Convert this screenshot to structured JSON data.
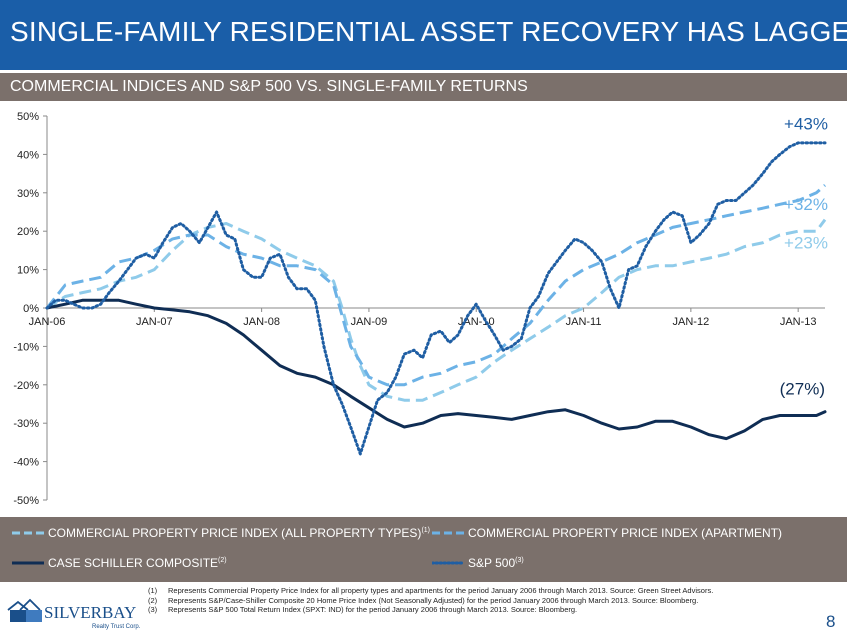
{
  "title": "SINGLE-FAMILY RESIDENTIAL ASSET RECOVERY HAS LAGGED",
  "subtitle": "COMMERCIAL INDICES AND S&P 500 VS. SINGLE-FAMILY RETURNS",
  "colors": {
    "title_bar": "#1a5ea8",
    "subtitle_bar": "#7b706b",
    "cppi_all": "#8fcbea",
    "cppi_apt": "#6cb2e6",
    "case_shiller": "#0f2d54",
    "sp500": "#1f5ea3"
  },
  "chart_data": {
    "type": "line",
    "y_tick_labels": [
      "50%",
      "40%",
      "30%",
      "20%",
      "10%",
      "0%",
      "-10%",
      "-20%",
      "-30%",
      "-40%",
      "-50%"
    ],
    "x_tick_labels": [
      "JAN-06",
      "JAN-07",
      "JAN-08",
      "JAN-09",
      "JAN-10",
      "JAN-11",
      "JAN-12",
      "JAN-13"
    ],
    "ylim": [
      -50,
      50
    ],
    "xlim": [
      2006.0,
      2013.25
    ],
    "grid": false,
    "legend_position": "bottom",
    "end_labels": [
      "+43%",
      "+32%",
      "+23%",
      "(27%)"
    ],
    "series": [
      {
        "name": "COMMERCIAL PROPERTY PRICE INDEX (ALL PROPERTY TYPES)",
        "footnote": "(1)",
        "style": "dashed",
        "color": "#8fcbea",
        "x": [
          2006.0,
          2006.17,
          2006.33,
          2006.5,
          2006.67,
          2006.83,
          2007.0,
          2007.17,
          2007.33,
          2007.5,
          2007.67,
          2007.83,
          2008.0,
          2008.17,
          2008.33,
          2008.5,
          2008.67,
          2008.75,
          2008.83,
          2008.92,
          2009.0,
          2009.17,
          2009.33,
          2009.5,
          2009.67,
          2009.83,
          2010.0,
          2010.17,
          2010.33,
          2010.5,
          2010.67,
          2010.83,
          2011.0,
          2011.17,
          2011.33,
          2011.5,
          2011.67,
          2011.83,
          2012.0,
          2012.17,
          2012.33,
          2012.5,
          2012.67,
          2012.83,
          2013.0,
          2013.17,
          2013.25
        ],
        "values": [
          0,
          3,
          4,
          5,
          7,
          8,
          10,
          15,
          19,
          21,
          22,
          20,
          18,
          15,
          13,
          11,
          7,
          0,
          -8,
          -15,
          -20,
          -23,
          -24,
          -24,
          -22,
          -20,
          -18,
          -14,
          -11,
          -8,
          -5,
          -2,
          0,
          4,
          8,
          10,
          11,
          11,
          12,
          13,
          14,
          16,
          17,
          19,
          20,
          20,
          23
        ]
      },
      {
        "name": "COMMERCIAL PROPERTY PRICE INDEX (APARTMENT)",
        "footnote": "",
        "style": "dashed",
        "color": "#6cb2e6",
        "x": [
          2006.0,
          2006.17,
          2006.33,
          2006.5,
          2006.67,
          2006.83,
          2007.0,
          2007.17,
          2007.33,
          2007.5,
          2007.67,
          2007.83,
          2008.0,
          2008.17,
          2008.33,
          2008.5,
          2008.67,
          2008.75,
          2008.83,
          2008.92,
          2009.0,
          2009.17,
          2009.33,
          2009.5,
          2009.67,
          2009.83,
          2010.0,
          2010.17,
          2010.33,
          2010.5,
          2010.67,
          2010.83,
          2011.0,
          2011.17,
          2011.33,
          2011.5,
          2011.67,
          2011.83,
          2012.0,
          2012.17,
          2012.33,
          2012.5,
          2012.67,
          2012.83,
          2013.0,
          2013.17,
          2013.25
        ],
        "values": [
          0,
          6,
          7,
          8,
          12,
          13,
          15,
          18,
          19,
          19,
          16,
          14,
          13,
          11,
          11,
          10,
          6,
          -2,
          -10,
          -14,
          -18,
          -20,
          -20,
          -18,
          -17,
          -15,
          -14,
          -12,
          -8,
          -4,
          2,
          7,
          10,
          12,
          14,
          17,
          19,
          21,
          22,
          23,
          24,
          25,
          26,
          27,
          28,
          30,
          32
        ]
      },
      {
        "name": "CASE SCHILLER COMPOSITE",
        "footnote": "(2)",
        "style": "solid",
        "color": "#0f2d54",
        "x": [
          2006.0,
          2006.17,
          2006.33,
          2006.5,
          2006.67,
          2006.83,
          2007.0,
          2007.17,
          2007.33,
          2007.5,
          2007.67,
          2007.83,
          2008.0,
          2008.17,
          2008.33,
          2008.5,
          2008.67,
          2008.83,
          2009.0,
          2009.17,
          2009.33,
          2009.5,
          2009.67,
          2009.83,
          2010.0,
          2010.17,
          2010.33,
          2010.5,
          2010.67,
          2010.83,
          2011.0,
          2011.17,
          2011.33,
          2011.5,
          2011.67,
          2011.83,
          2012.0,
          2012.17,
          2012.33,
          2012.5,
          2012.67,
          2012.83,
          2013.0,
          2013.17,
          2013.25
        ],
        "values": [
          0,
          1,
          2,
          2,
          2,
          1,
          0,
          -0.5,
          -1,
          -2,
          -4,
          -7,
          -11,
          -15,
          -17,
          -18,
          -20,
          -23,
          -26,
          -29,
          -31,
          -30,
          -28,
          -27.5,
          -28,
          -28.5,
          -29,
          -28,
          -27,
          -26.5,
          -28,
          -30,
          -31.5,
          -31,
          -29.5,
          -29.5,
          -31,
          -33,
          -34,
          -32,
          -29,
          -28,
          -28,
          -28,
          -27
        ]
      },
      {
        "name": "S&P 500",
        "footnote": "(3)",
        "style": "dotted",
        "color": "#1f5ea3",
        "x": [
          2006.0,
          2006.08,
          2006.17,
          2006.25,
          2006.33,
          2006.42,
          2006.5,
          2006.58,
          2006.67,
          2006.75,
          2006.83,
          2006.92,
          2007.0,
          2007.08,
          2007.17,
          2007.25,
          2007.33,
          2007.42,
          2007.5,
          2007.58,
          2007.67,
          2007.75,
          2007.83,
          2007.92,
          2008.0,
          2008.08,
          2008.17,
          2008.25,
          2008.33,
          2008.42,
          2008.5,
          2008.58,
          2008.67,
          2008.75,
          2008.83,
          2008.92,
          2009.0,
          2009.08,
          2009.17,
          2009.25,
          2009.33,
          2009.42,
          2009.5,
          2009.58,
          2009.67,
          2009.75,
          2009.83,
          2009.92,
          2010.0,
          2010.08,
          2010.17,
          2010.25,
          2010.33,
          2010.42,
          2010.5,
          2010.58,
          2010.67,
          2010.75,
          2010.83,
          2010.92,
          2011.0,
          2011.08,
          2011.17,
          2011.25,
          2011.33,
          2011.42,
          2011.5,
          2011.58,
          2011.67,
          2011.75,
          2011.83,
          2011.92,
          2012.0,
          2012.08,
          2012.17,
          2012.25,
          2012.33,
          2012.42,
          2012.5,
          2012.58,
          2012.67,
          2012.75,
          2012.83,
          2012.92,
          2013.0,
          2013.08,
          2013.17,
          2013.25
        ],
        "values": [
          0,
          2,
          2,
          1,
          0,
          0,
          1,
          4,
          7,
          10,
          13,
          14,
          13,
          17,
          21,
          22,
          20,
          17,
          21,
          25,
          19,
          18,
          10,
          8,
          8,
          13,
          14,
          8,
          5,
          5,
          2,
          -10,
          -20,
          -25,
          -31,
          -38,
          -31,
          -24,
          -22,
          -18,
          -12,
          -11,
          -13,
          -7,
          -6,
          -9,
          -7,
          -2,
          1,
          -3,
          -7,
          -11,
          -10,
          -8,
          0,
          3,
          9,
          12,
          15,
          18,
          17,
          15,
          12,
          5,
          0,
          10,
          11,
          16,
          20,
          23,
          25,
          24,
          17,
          19,
          22,
          27,
          28,
          28,
          30,
          32,
          35,
          38,
          40,
          42,
          43,
          43,
          43,
          43
        ]
      }
    ]
  },
  "legend": {
    "cppi_all_label": "COMMERCIAL PROPERTY PRICE INDEX (ALL PROPERTY TYPES)",
    "cppi_all_sup": "(1)",
    "cppi_apt_label": "COMMERCIAL PROPERTY PRICE INDEX (APARTMENT)",
    "case_label": "CASE SCHILLER COMPOSITE",
    "case_sup": "(2)",
    "sp_label": "S&P 500",
    "sp_sup": "(3)"
  },
  "footnotes": [
    {
      "num": "(1)",
      "text": "Represents Commercial Property Price Index for all property types and apartments for the period January 2006 through March 2013.  Source: Green Street Advisors."
    },
    {
      "num": "(2)",
      "text": "Represents S&P/Case-Shiller Composite 20 Home Price Index (Not Seasonally Adjusted) for the period January 2006 through March 2013.  Source: Bloomberg."
    },
    {
      "num": "(3)",
      "text": "Represents S&P 500 Total Return Index (SPXT: IND) for the period January 2006 through March 2013. Source: Bloomberg."
    }
  ],
  "logo": {
    "name": "SILVERBAY",
    "tagline": "Realty Trust Corp."
  },
  "page_number": "8"
}
